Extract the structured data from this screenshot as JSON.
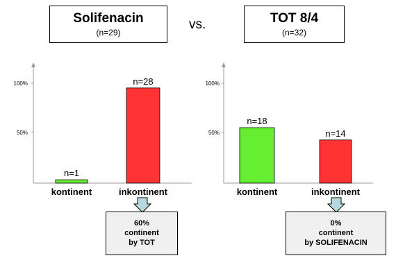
{
  "header": {
    "left_title": "Solifenacin",
    "left_n": "(n=29)",
    "vs": "vs.",
    "right_title": "TOT 8/4",
    "right_n": "(n=32)"
  },
  "chart_data": [
    {
      "type": "bar",
      "categories": [
        "kontinent",
        "inkontinent"
      ],
      "values": [
        3.4,
        96.6
      ],
      "data_labels": [
        "n=1",
        "n=28"
      ],
      "colors": [
        "#66ee33",
        "#ff3333"
      ],
      "yticks": [
        "100%",
        "50%"
      ],
      "ylim": [
        0,
        100
      ]
    },
    {
      "type": "bar",
      "categories": [
        "kontinent",
        "inkontinent"
      ],
      "values": [
        56.3,
        43.8
      ],
      "data_labels": [
        "n=18",
        "n=14"
      ],
      "colors": [
        "#66ee33",
        "#ff3333"
      ],
      "yticks": [
        "100%",
        "50%"
      ],
      "ylim": [
        0,
        100
      ]
    }
  ],
  "callouts": {
    "left": [
      "60%",
      "continent",
      "by TOT"
    ],
    "right": [
      "0%",
      "continent",
      "by SOLIFENACIN"
    ]
  },
  "colors": {
    "arrow_fill": "#b8d8e0",
    "callout_bg": "#f0f0f0"
  }
}
